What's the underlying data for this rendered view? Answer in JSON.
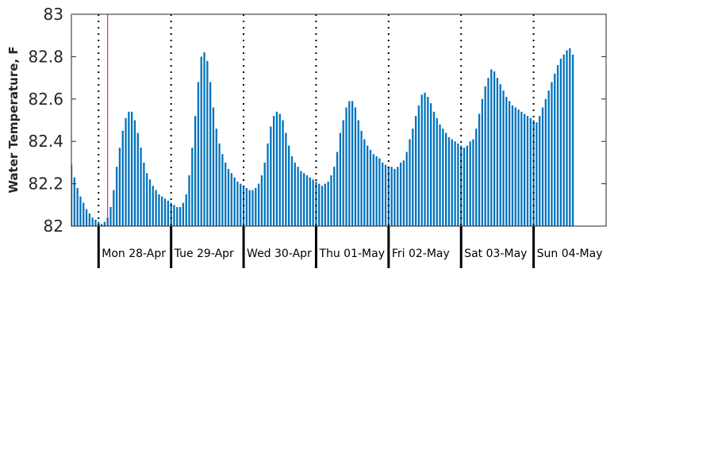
{
  "chart_data": {
    "type": "bar",
    "title": "",
    "xlabel": "",
    "ylabel": "Water Temperature, F",
    "ylim": [
      82,
      83
    ],
    "yticks": [
      "82",
      "82.2",
      "82.4",
      "82.6",
      "82.8",
      "83"
    ],
    "x_start": "2025-04-27 15:00",
    "x_end": "2025-05-05 00:00",
    "bar_interval_hours": 1,
    "day_labels": [
      "Mon 28-Apr",
      "Tue 29-Apr",
      "Wed 30-Apr",
      "Thu 01-May",
      "Fri 02-May",
      "Sat 03-May",
      "Sun 04-May"
    ],
    "marker_time": "2025-04-28 03:00",
    "colors": {
      "bar": "#0072BD",
      "marker": "#ff0000",
      "axis": "#262626",
      "day_divider": "#000000"
    },
    "values": [
      82.29,
      82.23,
      82.18,
      82.14,
      82.11,
      82.08,
      82.06,
      82.04,
      82.03,
      82.02,
      82.01,
      82.02,
      82.04,
      82.09,
      82.17,
      82.28,
      82.37,
      82.45,
      82.51,
      82.54,
      82.54,
      82.5,
      82.44,
      82.37,
      82.3,
      82.25,
      82.22,
      82.19,
      82.17,
      82.15,
      82.14,
      82.13,
      82.12,
      82.11,
      82.1,
      82.09,
      82.09,
      82.11,
      82.15,
      82.24,
      82.37,
      82.52,
      82.68,
      82.8,
      82.82,
      82.78,
      82.68,
      82.56,
      82.46,
      82.39,
      82.34,
      82.3,
      82.27,
      82.25,
      82.23,
      82.21,
      82.2,
      82.19,
      82.18,
      82.17,
      82.17,
      82.18,
      82.2,
      82.24,
      82.3,
      82.39,
      82.47,
      82.52,
      82.54,
      82.53,
      82.5,
      82.44,
      82.38,
      82.33,
      82.3,
      82.28,
      82.26,
      82.25,
      82.24,
      82.23,
      82.22,
      82.21,
      82.2,
      82.19,
      82.2,
      82.21,
      82.24,
      82.28,
      82.35,
      82.44,
      82.5,
      82.56,
      82.59,
      82.59,
      82.56,
      82.5,
      82.45,
      82.41,
      82.38,
      82.36,
      82.34,
      82.33,
      82.32,
      82.3,
      82.29,
      82.28,
      82.28,
      82.27,
      82.28,
      82.3,
      82.31,
      82.35,
      82.41,
      82.46,
      82.52,
      82.57,
      82.62,
      82.63,
      82.61,
      82.58,
      82.54,
      82.51,
      82.48,
      82.46,
      82.44,
      82.42,
      82.41,
      82.4,
      82.39,
      82.38,
      82.37,
      82.38,
      82.4,
      82.41,
      82.46,
      82.53,
      82.6,
      82.66,
      82.7,
      82.74,
      82.73,
      82.7,
      82.67,
      82.64,
      82.61,
      82.59,
      82.57,
      82.56,
      82.55,
      82.54,
      82.53,
      82.52,
      82.51,
      82.5,
      82.49,
      82.52,
      82.56,
      82.6,
      82.64,
      82.68,
      82.72,
      82.76,
      82.79,
      82.81,
      82.83,
      82.84,
      82.81
    ]
  }
}
